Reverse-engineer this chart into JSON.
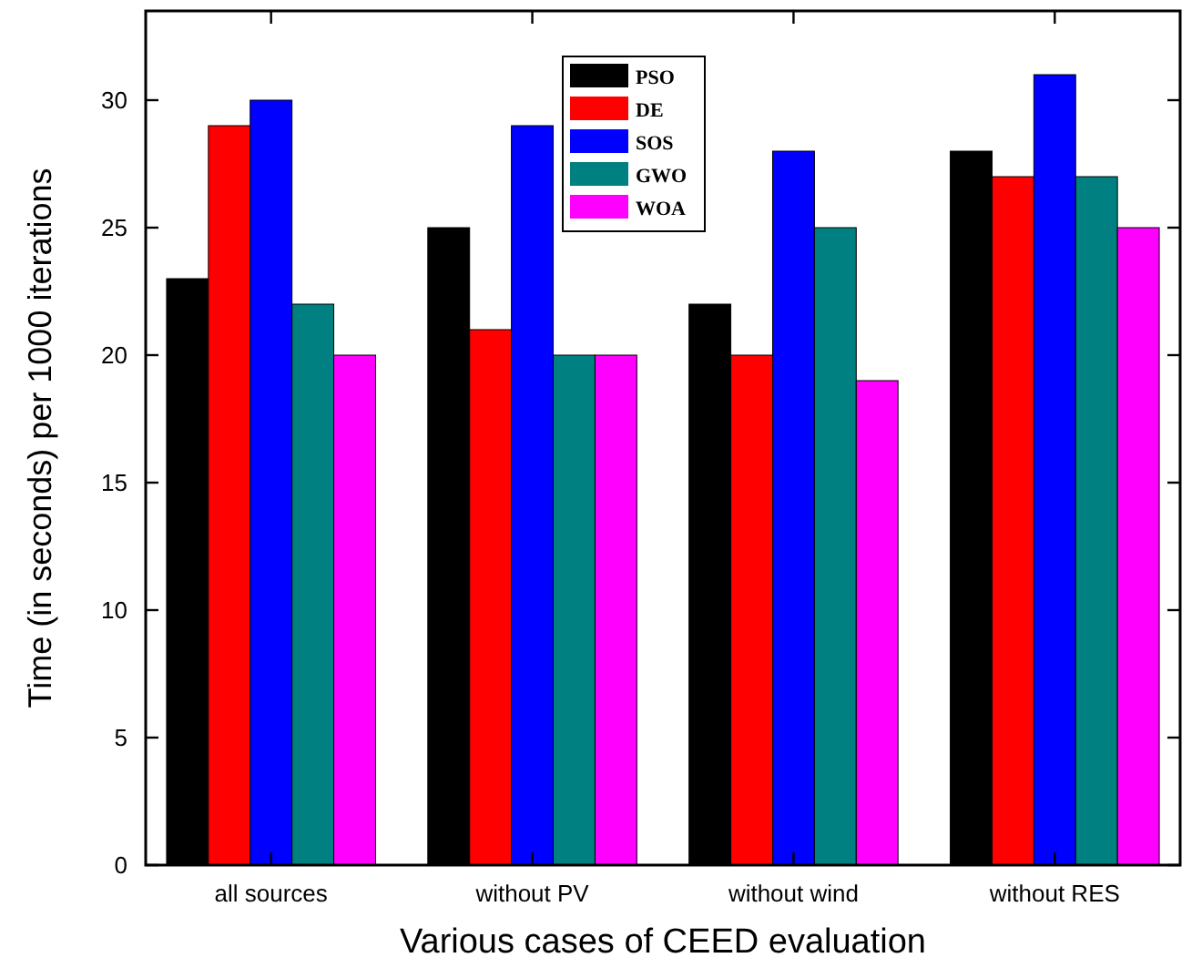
{
  "chart_data": {
    "type": "bar",
    "xlabel": "Various cases of CEED evaluation",
    "ylabel": "Time (in seconds) per 1000 iterations",
    "categories": [
      "all sources",
      "without PV",
      "without wind",
      "without RES"
    ],
    "series": [
      {
        "name": "PSO",
        "color": "#000000",
        "values": [
          23,
          25,
          22,
          28
        ]
      },
      {
        "name": "DE",
        "color": "#ff0000",
        "values": [
          29,
          21,
          20,
          27
        ]
      },
      {
        "name": "SOS",
        "color": "#0000ff",
        "values": [
          30,
          29,
          28,
          31
        ]
      },
      {
        "name": "GWO",
        "color": "#008080",
        "values": [
          22,
          20,
          25,
          27
        ]
      },
      {
        "name": "WOA",
        "color": "#ff00ff",
        "values": [
          20,
          20,
          19,
          25
        ]
      }
    ],
    "ylim": [
      0,
      33.5
    ],
    "yticks": [
      0,
      5,
      10,
      15,
      20,
      25,
      30
    ],
    "grid": false,
    "legend": "top"
  }
}
